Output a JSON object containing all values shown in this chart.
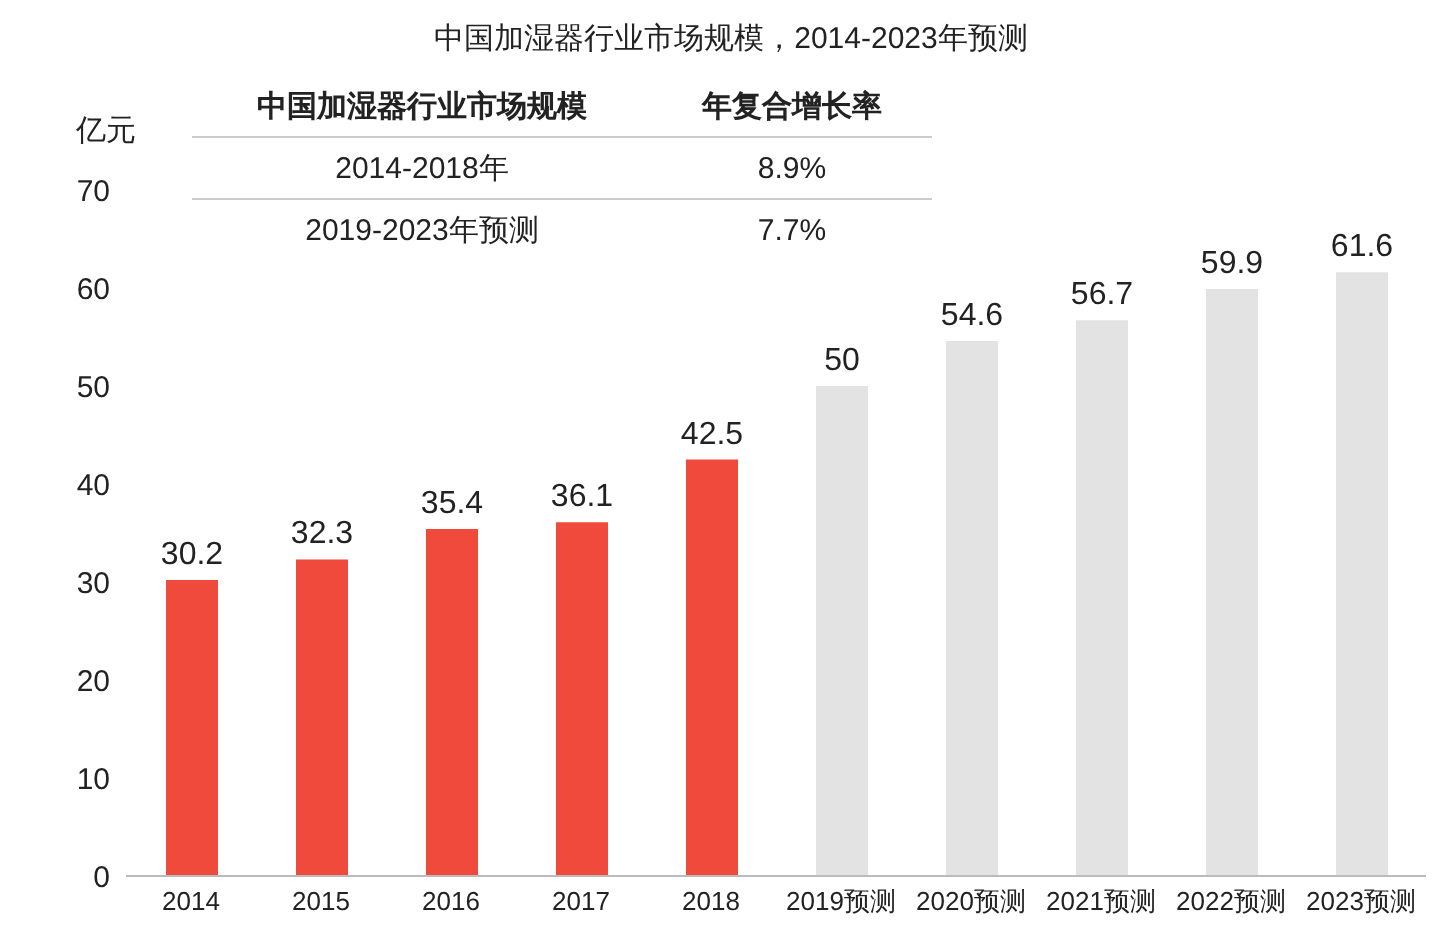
{
  "chart_data": {
    "type": "bar",
    "title": "中国加湿器行业市场规模，2014-2023年预测",
    "ylabel": "亿元",
    "categories": [
      "2014",
      "2015",
      "2016",
      "2017",
      "2018",
      "2019预测",
      "2020预测",
      "2021预测",
      "2022预测",
      "2023预测"
    ],
    "values": [
      30.2,
      32.3,
      35.4,
      36.1,
      42.5,
      50,
      54.6,
      56.7,
      59.9,
      61.6
    ],
    "colors": [
      "#f04a3c",
      "#f04a3c",
      "#f04a3c",
      "#f04a3c",
      "#f04a3c",
      "#e3e3e3",
      "#e3e3e3",
      "#e3e3e3",
      "#e3e3e3",
      "#e3e3e3"
    ],
    "ylim": [
      0,
      70
    ],
    "yticks": [
      0,
      10,
      20,
      30,
      40,
      50,
      60,
      70
    ],
    "grid": false,
    "legend": false,
    "data_labels": true,
    "annotations": [
      "中国加湿器行业市场规模",
      "年复合增长率",
      "2014-2018年",
      "8.9%",
      "2019-2023年预测",
      "7.7%"
    ]
  }
}
